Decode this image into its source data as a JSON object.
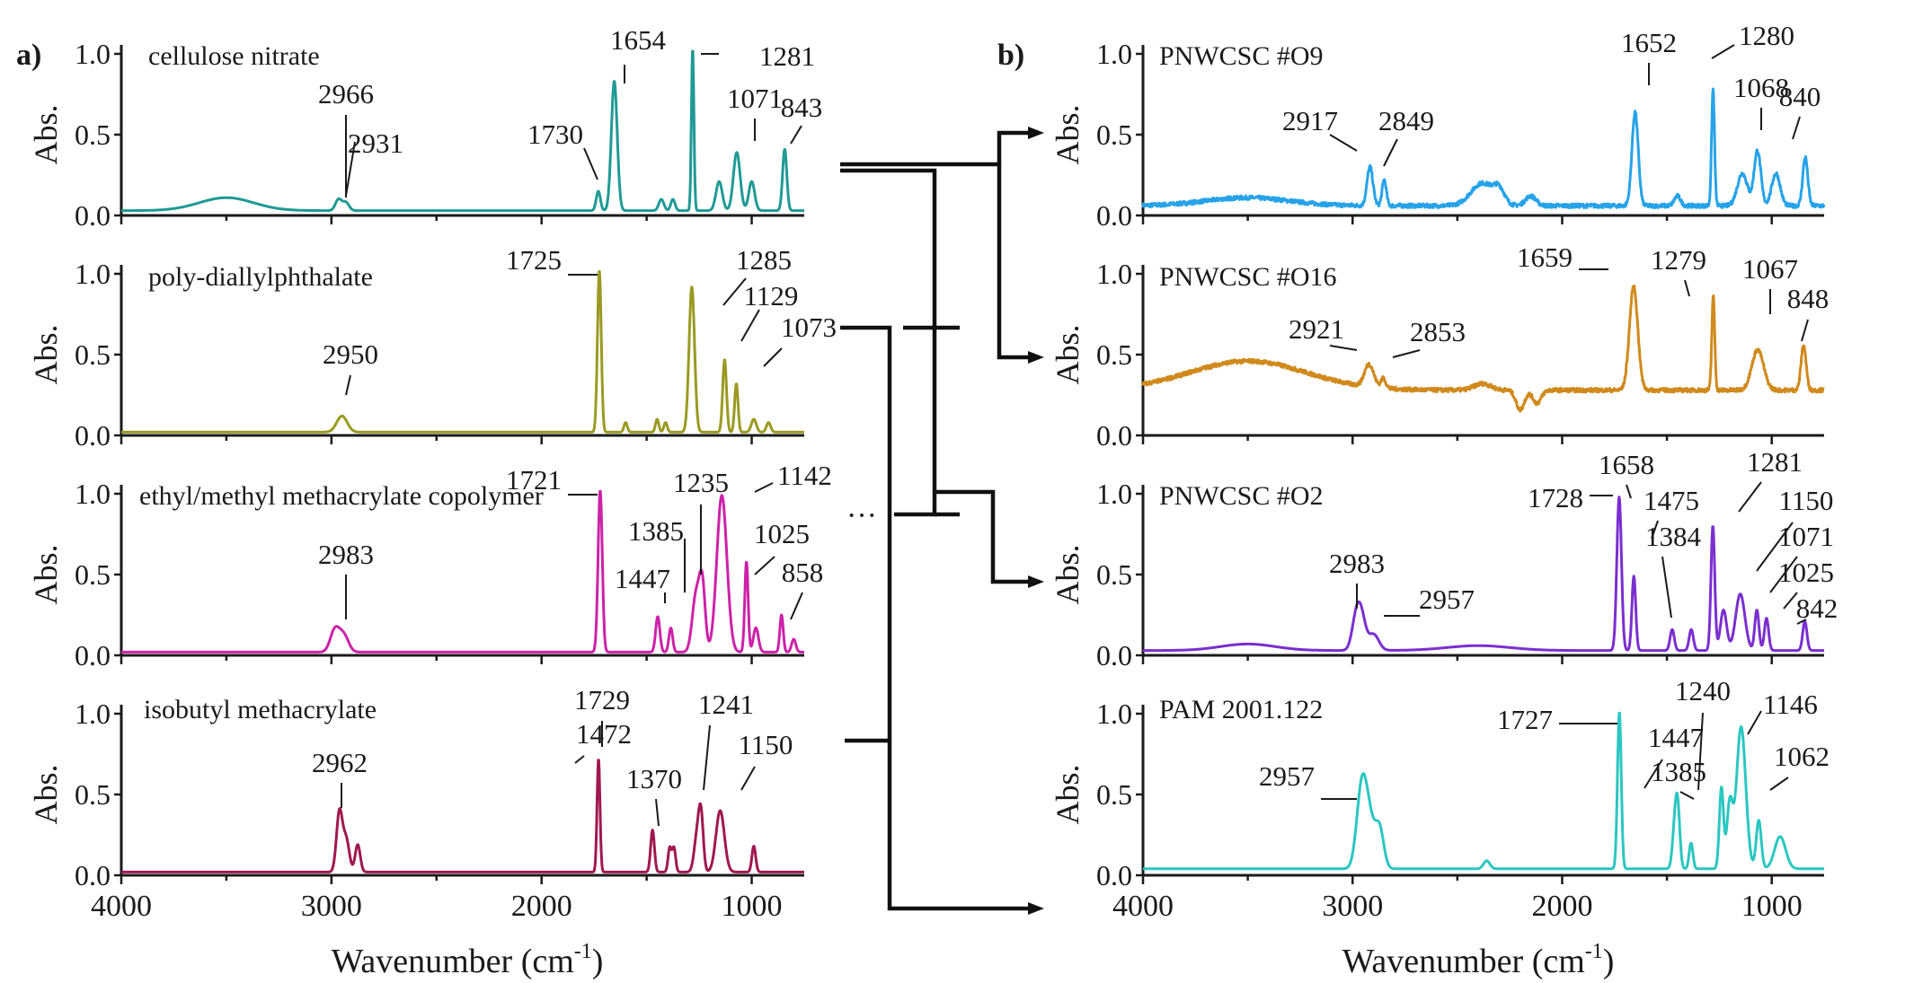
{
  "panels": [
    {
      "id": "a",
      "label": "a)",
      "xlabel": "Wavenumber (cm",
      "xlabel_sup": "-1",
      "xlabel_tail": ")"
    },
    {
      "id": "b",
      "label": "b)",
      "xlabel": "Wavenumber (cm",
      "xlabel_sup": "-1",
      "xlabel_tail": ")"
    }
  ],
  "chart_data": [
    {
      "type": "line",
      "panel": "a",
      "title": "cellulose nitrate",
      "ylabel": "Abs.",
      "xlim": [
        4000,
        750
      ],
      "ylim": [
        0,
        1
      ],
      "x_reversed": true,
      "color": "#1f9a94",
      "xticks": [
        4000,
        3000,
        2000,
        1000
      ],
      "yticks": [
        0.0,
        0.5,
        1.0
      ],
      "baseline": 0.03,
      "peaks": [
        [
          3500,
          0.08,
          130
        ],
        [
          2966,
          0.07,
          15
        ],
        [
          2931,
          0.05,
          15
        ],
        [
          1730,
          0.12,
          10
        ],
        [
          1654,
          0.8,
          14
        ],
        [
          1430,
          0.07,
          12
        ],
        [
          1375,
          0.07,
          10
        ],
        [
          1281,
          1.0,
          6
        ],
        [
          1155,
          0.18,
          15
        ],
        [
          1071,
          0.36,
          16
        ],
        [
          1000,
          0.18,
          14
        ],
        [
          843,
          0.38,
          10
        ]
      ],
      "annotations": [
        "2966",
        "2931",
        "1730",
        "1654",
        "1281",
        "1071",
        "843"
      ]
    },
    {
      "type": "line",
      "panel": "a",
      "title": "poly-diallylphthalate",
      "ylabel": "Abs.",
      "xlim": [
        4000,
        750
      ],
      "ylim": [
        0,
        1
      ],
      "x_reversed": true,
      "color": "#9a9a22",
      "xticks": [
        4000,
        3000,
        2000,
        1000
      ],
      "yticks": [
        0.0,
        0.5,
        1.0
      ],
      "baseline": 0.02,
      "peaks": [
        [
          2950,
          0.1,
          25
        ],
        [
          1725,
          1.0,
          9
        ],
        [
          1600,
          0.06,
          8
        ],
        [
          1450,
          0.08,
          8
        ],
        [
          1410,
          0.06,
          8
        ],
        [
          1285,
          0.9,
          13
        ],
        [
          1129,
          0.45,
          9
        ],
        [
          1073,
          0.3,
          8
        ],
        [
          990,
          0.08,
          12
        ],
        [
          920,
          0.06,
          10
        ]
      ],
      "annotations": [
        "1725",
        "1285",
        "1129",
        "1073",
        "2950"
      ]
    },
    {
      "type": "line",
      "panel": "a",
      "title": "ethyl/methyl methacrylate copolymer",
      "ylabel": "Abs.",
      "xlim": [
        4000,
        750
      ],
      "ylim": [
        0,
        1
      ],
      "x_reversed": true,
      "color": "#cc22a8",
      "xticks": [
        4000,
        3000,
        2000,
        1000
      ],
      "yticks": [
        0.0,
        0.5,
        1.0
      ],
      "baseline": 0.02,
      "peaks": [
        [
          2983,
          0.14,
          22
        ],
        [
          2940,
          0.1,
          22
        ],
        [
          1721,
          1.0,
          10
        ],
        [
          1447,
          0.22,
          10
        ],
        [
          1385,
          0.15,
          9
        ],
        [
          1265,
          0.35,
          18
        ],
        [
          1235,
          0.4,
          14
        ],
        [
          1142,
          0.97,
          24
        ],
        [
          1025,
          0.56,
          8
        ],
        [
          980,
          0.15,
          12
        ],
        [
          858,
          0.23,
          8
        ],
        [
          800,
          0.08,
          10
        ]
      ],
      "annotations": [
        "1721",
        "1235",
        "1142",
        "1385",
        "1025",
        "1447",
        "858",
        "2983"
      ]
    },
    {
      "type": "line",
      "panel": "a",
      "title": "isobutyl methacrylate",
      "ylabel": "Abs.",
      "xlim": [
        4000,
        750
      ],
      "ylim": [
        0,
        1
      ],
      "x_reversed": true,
      "color": "#a01850",
      "xticks": [
        4000,
        3000,
        2000,
        1000
      ],
      "yticks": [
        0.0,
        0.5,
        1.0
      ],
      "baseline": 0.02,
      "peaks": [
        [
          2962,
          0.37,
          14
        ],
        [
          2930,
          0.2,
          15
        ],
        [
          2875,
          0.17,
          12
        ],
        [
          1729,
          0.7,
          7
        ],
        [
          1472,
          0.26,
          9
        ],
        [
          1390,
          0.15,
          8
        ],
        [
          1370,
          0.15,
          8
        ],
        [
          1260,
          0.22,
          14
        ],
        [
          1241,
          0.32,
          11
        ],
        [
          1150,
          0.38,
          20
        ],
        [
          990,
          0.16,
          9
        ]
      ],
      "annotations": [
        "1729",
        "1472",
        "1241",
        "1370",
        "1150",
        "2962"
      ]
    },
    {
      "type": "line",
      "panel": "b",
      "title": "PNWCSC #O9",
      "ylabel": "Abs.",
      "xlim": [
        4000,
        750
      ],
      "ylim": [
        0,
        1
      ],
      "x_reversed": true,
      "color": "#26a3e8",
      "xticks": [
        4000,
        3000,
        2000,
        1000
      ],
      "yticks": [
        0.0,
        0.5,
        1.0
      ],
      "baseline": 0.06,
      "noise": 0.025,
      "peaks": [
        [
          3500,
          0.05,
          200
        ],
        [
          2917,
          0.24,
          14
        ],
        [
          2849,
          0.16,
          10
        ],
        [
          2380,
          0.14,
          55
        ],
        [
          2300,
          0.08,
          25
        ],
        [
          2150,
          0.06,
          25
        ],
        [
          1652,
          0.58,
          15
        ],
        [
          1450,
          0.06,
          15
        ],
        [
          1280,
          0.72,
          7
        ],
        [
          1140,
          0.2,
          24
        ],
        [
          1068,
          0.34,
          16
        ],
        [
          980,
          0.2,
          20
        ],
        [
          840,
          0.3,
          12
        ]
      ],
      "annotations": [
        "1652",
        "1280",
        "1068",
        "840",
        "2917",
        "2849"
      ]
    },
    {
      "type": "line",
      "panel": "b",
      "title": "PNWCSC #O16",
      "ylabel": "Abs.",
      "xlim": [
        4000,
        750
      ],
      "ylim": [
        0,
        1
      ],
      "x_reversed": true,
      "color": "#d08a1c",
      "xticks": [
        4000,
        3000,
        2000,
        1000
      ],
      "yticks": [
        0.0,
        0.5,
        1.0
      ],
      "baseline": 0.28,
      "noise": 0.025,
      "peaks": [
        [
          3500,
          0.18,
          280
        ],
        [
          2921,
          0.14,
          22
        ],
        [
          2853,
          0.06,
          12
        ],
        [
          2380,
          0.04,
          40
        ],
        [
          2200,
          -0.12,
          20
        ],
        [
          2120,
          -0.08,
          20
        ],
        [
          1659,
          0.64,
          20
        ],
        [
          1279,
          0.58,
          7
        ],
        [
          1067,
          0.25,
          28
        ],
        [
          848,
          0.28,
          12
        ]
      ],
      "annotations": [
        "1659",
        "1279",
        "1067",
        "848",
        "2921",
        "2853"
      ]
    },
    {
      "type": "line",
      "panel": "b",
      "title": "PNWCSC #O2",
      "ylabel": "Abs.",
      "xlim": [
        4000,
        750
      ],
      "ylim": [
        0,
        1
      ],
      "x_reversed": true,
      "color": "#7a2fd0",
      "xticks": [
        4000,
        3000,
        2000,
        1000
      ],
      "yticks": [
        0.0,
        0.5,
        1.0
      ],
      "baseline": 0.03,
      "peaks": [
        [
          3500,
          0.04,
          130
        ],
        [
          2983,
          0.19,
          20
        ],
        [
          2957,
          0.18,
          20
        ],
        [
          2900,
          0.1,
          25
        ],
        [
          2400,
          0.03,
          150
        ],
        [
          1728,
          0.95,
          11
        ],
        [
          1658,
          0.46,
          9
        ],
        [
          1475,
          0.13,
          10
        ],
        [
          1384,
          0.13,
          10
        ],
        [
          1281,
          0.77,
          9
        ],
        [
          1230,
          0.25,
          15
        ],
        [
          1150,
          0.35,
          22
        ],
        [
          1071,
          0.25,
          10
        ],
        [
          1025,
          0.2,
          10
        ],
        [
          842,
          0.18,
          10
        ]
      ],
      "annotations": [
        "1728",
        "1658",
        "1475",
        "1384",
        "1281",
        "1150",
        "1071",
        "1025",
        "842",
        "2983",
        "2957"
      ]
    },
    {
      "type": "line",
      "panel": "b",
      "title": "PAM 2001.122",
      "ylabel": "Abs.",
      "xlim": [
        4000,
        750
      ],
      "ylim": [
        0,
        1
      ],
      "x_reversed": true,
      "color": "#2ac7c0",
      "xticks": [
        4000,
        3000,
        2000,
        1000
      ],
      "yticks": [
        0.0,
        0.5,
        1.0
      ],
      "baseline": 0.04,
      "peaks": [
        [
          2957,
          0.45,
          24
        ],
        [
          2920,
          0.28,
          28
        ],
        [
          2870,
          0.22,
          20
        ],
        [
          2360,
          0.05,
          15
        ],
        [
          1727,
          0.97,
          9
        ],
        [
          1460,
          0.3,
          12
        ],
        [
          1447,
          0.26,
          10
        ],
        [
          1385,
          0.16,
          9
        ],
        [
          1240,
          0.5,
          10
        ],
        [
          1200,
          0.4,
          14
        ],
        [
          1146,
          0.88,
          22
        ],
        [
          1062,
          0.3,
          12
        ],
        [
          960,
          0.2,
          26
        ]
      ],
      "annotations": [
        "1727",
        "1447",
        "1240",
        "1146",
        "1385",
        "1062",
        "2957"
      ]
    }
  ]
}
